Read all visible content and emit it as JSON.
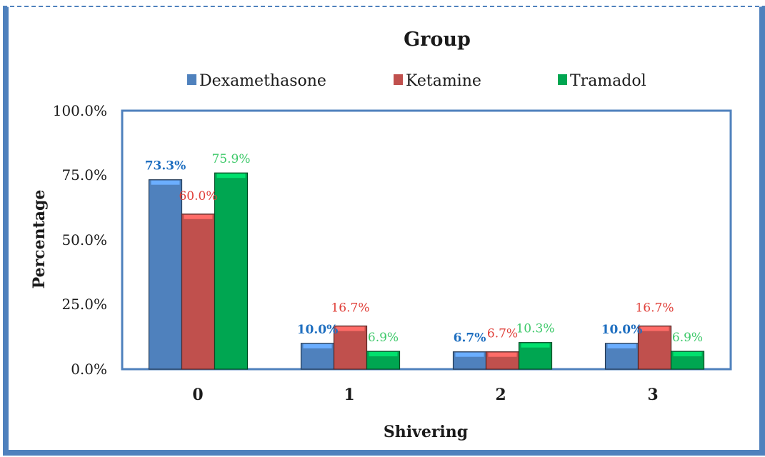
{
  "chart_data": {
    "type": "bar",
    "title": "Group",
    "xlabel": "Shivering",
    "ylabel": "Percentage",
    "categories": [
      "0",
      "1",
      "2",
      "3"
    ],
    "ylim": [
      0,
      100
    ],
    "yticks": [
      "0.0%",
      "25.0%",
      "50.0%",
      "75.0%",
      "100.0%"
    ],
    "legend_position": "top",
    "grid": false,
    "series": [
      {
        "name": "Dexamethasone",
        "color": "#4f81bd",
        "label_color": "#1f6fc0",
        "values": [
          73.3,
          10.0,
          6.7,
          10.0
        ],
        "labels": [
          "73.3%",
          "10.0%",
          "6.7%",
          "10.0%"
        ]
      },
      {
        "name": "Ketamine",
        "color": "#c0504d",
        "label_color": "#e0403a",
        "values": [
          60.0,
          16.7,
          6.7,
          16.7
        ],
        "labels": [
          "60.0%",
          "16.7%",
          "6.7%",
          "16.7%"
        ]
      },
      {
        "name": "Tramadol",
        "color": "#00a651",
        "label_color": "#3ec96a",
        "values": [
          75.9,
          6.9,
          10.3,
          6.9
        ],
        "labels": [
          "75.9%",
          "6.9%",
          "10.3%",
          "6.9%"
        ]
      }
    ]
  }
}
